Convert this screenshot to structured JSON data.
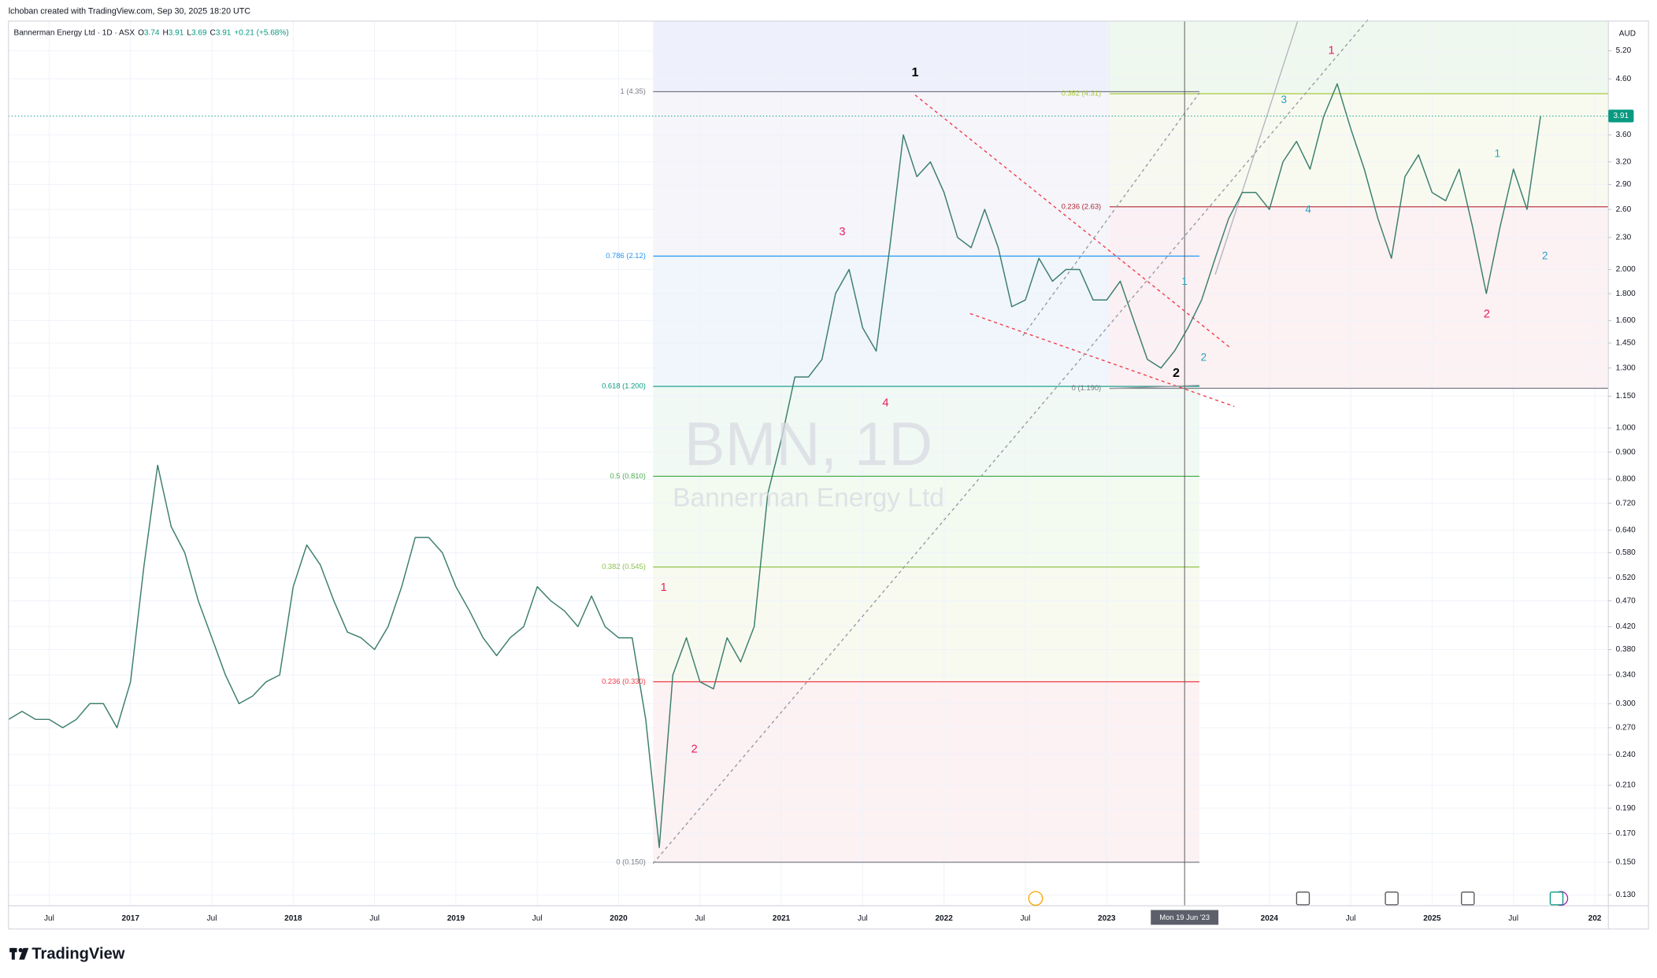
{
  "header": "lchoban created with TradingView.com, Sep 30, 2025 18:20 UTC",
  "brand": "TradingView",
  "chart_data": {
    "type": "line",
    "symbol": "Bannerman Energy Ltd · 1D · ASX",
    "ohlc": [
      {
        "label": "O",
        "value": 3.74
      },
      {
        "label": "H",
        "value": 3.91
      },
      {
        "label": "L",
        "value": 3.69
      },
      {
        "label": "C",
        "value": 3.91
      }
    ],
    "change": "+0.21 (+5.68%)",
    "watermark": "BMN, 1D",
    "watermark_name": "Bannerman Energy Ltd",
    "currency": "AUD",
    "log_scale": true,
    "grid": true,
    "color": "#3d7f6e",
    "crosshair_label": "Mon 19 Jun '23",
    "x": [
      "2016-04",
      "2016-05",
      "2016-06",
      "2016-07",
      "2016-08",
      "2016-09",
      "2016-10",
      "2016-11",
      "2016-12",
      "2017-01",
      "2017-02",
      "2017-03",
      "2017-04",
      "2017-05",
      "2017-06",
      "2017-07",
      "2017-08",
      "2017-09",
      "2017-10",
      "2017-11",
      "2017-12",
      "2018-01",
      "2018-02",
      "2018-03",
      "2018-04",
      "2018-05",
      "2018-06",
      "2018-07",
      "2018-08",
      "2018-09",
      "2018-10",
      "2018-11",
      "2018-12",
      "2019-01",
      "2019-02",
      "2019-03",
      "2019-04",
      "2019-05",
      "2019-06",
      "2019-07",
      "2019-08",
      "2019-09",
      "2019-10",
      "2019-11",
      "2019-12",
      "2020-01",
      "2020-02",
      "2020-03",
      "2020-04",
      "2020-05",
      "2020-06",
      "2020-07",
      "2020-08",
      "2020-09",
      "2020-10",
      "2020-11",
      "2020-12",
      "2021-01",
      "2021-02",
      "2021-03",
      "2021-04",
      "2021-05",
      "2021-06",
      "2021-07",
      "2021-08",
      "2021-09",
      "2021-10",
      "2021-11",
      "2021-12",
      "2022-01",
      "2022-02",
      "2022-03",
      "2022-04",
      "2022-05",
      "2022-06",
      "2022-07",
      "2022-08",
      "2022-09",
      "2022-10",
      "2022-11",
      "2022-12",
      "2023-01",
      "2023-02",
      "2023-03",
      "2023-04",
      "2023-05",
      "2023-06",
      "2023-07",
      "2023-08",
      "2023-09",
      "2023-10",
      "2023-11",
      "2023-12",
      "2024-01",
      "2024-02",
      "2024-03",
      "2024-04",
      "2024-05",
      "2024-06",
      "2024-07",
      "2024-08",
      "2024-09",
      "2024-10",
      "2024-11",
      "2024-12",
      "2025-01",
      "2025-02",
      "2025-03",
      "2025-04",
      "2025-05",
      "2025-06",
      "2025-07",
      "2025-08",
      "2025-09"
    ],
    "values": [
      0.28,
      0.29,
      0.28,
      0.28,
      0.27,
      0.28,
      0.3,
      0.3,
      0.27,
      0.33,
      0.55,
      0.85,
      0.65,
      0.58,
      0.47,
      0.4,
      0.34,
      0.3,
      0.31,
      0.33,
      0.34,
      0.5,
      0.6,
      0.55,
      0.47,
      0.41,
      0.4,
      0.38,
      0.42,
      0.5,
      0.62,
      0.62,
      0.58,
      0.5,
      0.45,
      0.4,
      0.37,
      0.4,
      0.42,
      0.5,
      0.47,
      0.45,
      0.42,
      0.48,
      0.42,
      0.4,
      0.4,
      0.28,
      0.16,
      0.34,
      0.4,
      0.33,
      0.32,
      0.4,
      0.36,
      0.42,
      0.75,
      0.95,
      1.25,
      1.25,
      1.35,
      1.8,
      2.0,
      1.55,
      1.4,
      2.2,
      3.6,
      3.0,
      3.2,
      2.8,
      2.3,
      2.2,
      2.6,
      2.2,
      1.7,
      1.75,
      2.1,
      1.9,
      2.0,
      2.0,
      1.75,
      1.75,
      1.9,
      1.6,
      1.35,
      1.3,
      1.4,
      1.55,
      1.75,
      2.1,
      2.5,
      2.8,
      2.8,
      2.6,
      3.2,
      3.5,
      3.1,
      3.9,
      4.5,
      3.7,
      3.1,
      2.5,
      2.1,
      3.0,
      3.3,
      2.8,
      2.7,
      3.1,
      2.4,
      1.8,
      2.4,
      3.1,
      2.6,
      3.91
    ],
    "xlim": [
      "2016-04",
      "2026-02"
    ],
    "xticks": [
      {
        "value": "2016-07",
        "label": "Jul"
      },
      {
        "value": "2017-01",
        "label": "2017"
      },
      {
        "value": "2017-07",
        "label": "Jul"
      },
      {
        "value": "2018-01",
        "label": "2018"
      },
      {
        "value": "2018-07",
        "label": "Jul"
      },
      {
        "value": "2019-01",
        "label": "2019"
      },
      {
        "value": "2019-07",
        "label": "Jul"
      },
      {
        "value": "2020-01",
        "label": "2020"
      },
      {
        "value": "2020-07",
        "label": "Jul"
      },
      {
        "value": "2021-01",
        "label": "2021"
      },
      {
        "value": "2021-07",
        "label": "Jul"
      },
      {
        "value": "2022-01",
        "label": "2022"
      },
      {
        "value": "2022-07",
        "label": "Jul"
      },
      {
        "value": "2023-01",
        "label": "2023"
      },
      {
        "value": "2024-01",
        "label": "2024"
      },
      {
        "value": "2024-07",
        "label": "Jul"
      },
      {
        "value": "2025-01",
        "label": "2025"
      },
      {
        "value": "2025-07",
        "label": "Jul"
      },
      {
        "value": "2026-01",
        "label": "202"
      }
    ],
    "ylim": [
      0.124,
      5.92
    ],
    "yticks": [
      {
        "value": 5.2,
        "label": "5.20"
      },
      {
        "value": 4.6,
        "label": "4.60"
      },
      {
        "value": 3.6,
        "label": "3.60"
      },
      {
        "value": 3.2,
        "label": "3.20"
      },
      {
        "value": 2.9,
        "label": "2.90"
      },
      {
        "value": 2.6,
        "label": "2.60"
      },
      {
        "value": 2.3,
        "label": "2.30"
      },
      {
        "value": 2.0,
        "label": "2.000"
      },
      {
        "value": 1.8,
        "label": "1.800"
      },
      {
        "value": 1.6,
        "label": "1.600"
      },
      {
        "value": 1.45,
        "label": "1.450"
      },
      {
        "value": 1.3,
        "label": "1.300"
      },
      {
        "value": 1.15,
        "label": "1.150"
      },
      {
        "value": 1.0,
        "label": "1.000"
      },
      {
        "value": 0.9,
        "label": "0.900"
      },
      {
        "value": 0.8,
        "label": "0.800"
      },
      {
        "value": 0.72,
        "label": "0.720"
      },
      {
        "value": 0.64,
        "label": "0.640"
      },
      {
        "value": 0.58,
        "label": "0.580"
      },
      {
        "value": 0.52,
        "label": "0.520"
      },
      {
        "value": 0.47,
        "label": "0.470"
      },
      {
        "value": 0.42,
        "label": "0.420"
      },
      {
        "value": 0.38,
        "label": "0.380"
      },
      {
        "value": 0.34,
        "label": "0.340"
      },
      {
        "value": 0.3,
        "label": "0.300"
      },
      {
        "value": 0.27,
        "label": "0.270"
      },
      {
        "value": 0.24,
        "label": "0.240"
      },
      {
        "value": 0.21,
        "label": "0.210"
      },
      {
        "value": 0.19,
        "label": "0.190"
      },
      {
        "value": 0.17,
        "label": "0.170"
      },
      {
        "value": 0.15,
        "label": "0.150"
      },
      {
        "value": 0.13,
        "label": "0.130"
      }
    ],
    "fib_left": [
      {
        "label": "1 (4.35)",
        "value": 4.35,
        "color": "#787b86",
        "fill": "#f4f4f9"
      },
      {
        "label": "0.786 (2.12)",
        "value": 2.12,
        "color": "#2196f3",
        "fill": "#eef5fb"
      },
      {
        "label": "0.618 (1.200)",
        "value": 1.2,
        "color": "#089981",
        "fill": "#eef8f2"
      },
      {
        "label": "0.5 (0.810)",
        "value": 0.81,
        "color": "#4caf50",
        "fill": "#f2f9ee"
      },
      {
        "label": "0.382 (0.545)",
        "value": 0.545,
        "color": "#8bc34a",
        "fill": "#f7f9ee"
      },
      {
        "label": "0.236 (0.330)",
        "value": 0.33,
        "color": "#f23645",
        "fill": "#fcf0f2"
      },
      {
        "label": "0 (0.150)",
        "value": 0.15,
        "color": "#787b86"
      }
    ],
    "fib_right": [
      {
        "label": "0.382 (4.31)",
        "value": 4.31,
        "color": "#a8c73a",
        "fill": "#f7f9ee"
      },
      {
        "label": "0.236 (2.63)",
        "value": 2.63,
        "color": "#b22833",
        "fill": "#fcf0f2"
      },
      {
        "label": "0 (1.190)",
        "value": 1.19,
        "color": "#787b86"
      }
    ],
    "wave_labels": [
      {
        "text": "1",
        "color": "#000000"
      },
      {
        "text": "2",
        "color": "#000000"
      },
      {
        "text": "1",
        "color": "#e91e63"
      },
      {
        "text": "2",
        "color": "#e91e63"
      },
      {
        "text": "3",
        "color": "#e91e63"
      },
      {
        "text": "4",
        "color": "#e91e63"
      },
      {
        "text": "1",
        "color": "#e91e63"
      },
      {
        "text": "2",
        "color": "#e91e63"
      },
      {
        "text": "3",
        "color": "#22a3c3"
      },
      {
        "text": "4",
        "color": "#22a3c3"
      },
      {
        "text": "1",
        "color": "#22a3c3"
      },
      {
        "text": "2",
        "color": "#22a3c3"
      },
      {
        "text": "1",
        "color": "#22a3c3"
      },
      {
        "text": "2",
        "color": "#22a3c3"
      }
    ]
  }
}
